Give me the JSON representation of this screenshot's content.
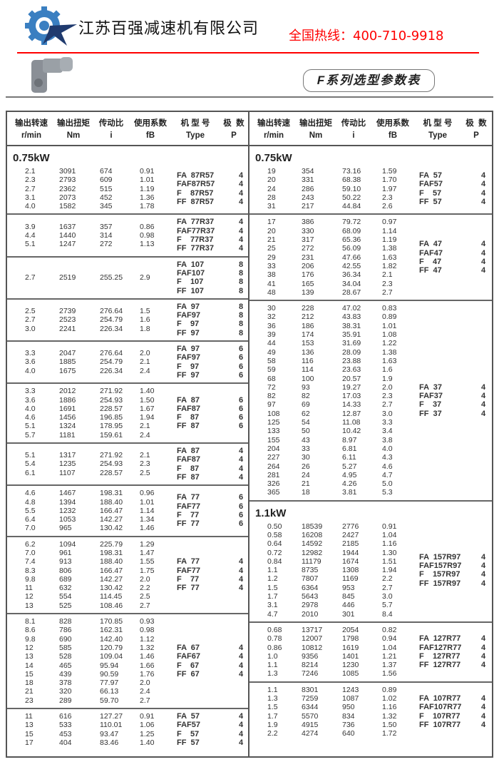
{
  "header": {
    "company": "江苏百强减速机有限公司",
    "hotline": "全国热线：400-710-9918",
    "series_title": "F系列选型参数表",
    "colors": {
      "hotline": "#ff0000",
      "logo_blue": "#3a7fc1",
      "logo_navy": "#1f3a6e"
    }
  },
  "columns": [
    {
      "cn": "输出转速",
      "en": "r/min"
    },
    {
      "cn": "输出扭矩",
      "en": "Nm"
    },
    {
      "cn": "传动比",
      "en": "i"
    },
    {
      "cn": "使用系数",
      "en": "fB"
    },
    {
      "cn": "机 型 号",
      "en": "Type"
    },
    {
      "cn": "极  数",
      "en": "P"
    }
  ],
  "left": [
    {
      "power": "0.75kW",
      "blocks": [
        {
          "rows": [
            [
              "2.1",
              "3091",
              "674",
              "0.91"
            ],
            [
              "2.3",
              "2793",
              "609",
              "1.01"
            ],
            [
              "2.7",
              "2362",
              "515",
              "1.19"
            ],
            [
              "3.1",
              "2073",
              "452",
              "1.36"
            ],
            [
              "4.0",
              "1582",
              "345",
              "1.78"
            ]
          ],
          "types": [
            "FA  87R57",
            "FAF87R57",
            "F    87R57",
            "FF  87R57"
          ],
          "poles": [
            "4",
            "4",
            "4",
            "4"
          ]
        },
        {
          "rows": [
            [
              "3.9",
              "1637",
              "357",
              "0.86"
            ],
            [
              "4.4",
              "1440",
              "314",
              "0.98"
            ],
            [
              "5.1",
              "1247",
              "272",
              "1.13"
            ]
          ],
          "types": [
            "FA  77R37",
            "FAF77R37",
            "F    77R37",
            "FF  77R37"
          ],
          "poles": [
            "4",
            "4",
            "4",
            "4"
          ]
        },
        {
          "rows": [
            [
              "2.7",
              "2519",
              "255.25",
              "2.9"
            ]
          ],
          "types": [
            "FA  107",
            "FAF107",
            "F    107",
            "FF  107"
          ],
          "poles": [
            "8",
            "8",
            "8",
            "8"
          ]
        },
        {
          "rows": [
            [
              "2.5",
              "2739",
              "276.64",
              "1.5"
            ],
            [
              "2.7",
              "2523",
              "254.79",
              "1.6"
            ],
            [
              "3.0",
              "2241",
              "226.34",
              "1.8"
            ]
          ],
          "types": [
            "FA  97",
            "FAF97",
            "F    97",
            "FF  97"
          ],
          "poles": [
            "8",
            "8",
            "8",
            "8"
          ]
        },
        {
          "rows": [
            [
              "3.3",
              "2047",
              "276.64",
              "2.0"
            ],
            [
              "3.6",
              "1885",
              "254.79",
              "2.1"
            ],
            [
              "4.0",
              "1675",
              "226.34",
              "2.4"
            ]
          ],
          "types": [
            "FA  97",
            "FAF97",
            "F    97",
            "FF  97"
          ],
          "poles": [
            "6",
            "6",
            "6",
            "6"
          ]
        },
        {
          "rows": [
            [
              "3.3",
              "2012",
              "271.92",
              "1.40"
            ],
            [
              "3.6",
              "1886",
              "254.93",
              "1.50"
            ],
            [
              "4.0",
              "1691",
              "228.57",
              "1.67"
            ],
            [
              "4.6",
              "1456",
              "196.85",
              "1.94"
            ],
            [
              "5.1",
              "1324",
              "178.95",
              "2.1"
            ],
            [
              "5.7",
              "1181",
              "159.61",
              "2.4"
            ]
          ],
          "types": [
            "FA  87",
            "FAF87",
            "F    87",
            "FF  87"
          ],
          "poles": [
            "6",
            "6",
            "6",
            "6"
          ]
        },
        {
          "rows": [
            [
              "5.1",
              "1317",
              "271.92",
              "2.1"
            ],
            [
              "5.4",
              "1235",
              "254.93",
              "2.3"
            ],
            [
              "6.1",
              "1107",
              "228.57",
              "2.5"
            ]
          ],
          "types": [
            "FA  87",
            "FAF87",
            "F    87",
            "FF  87"
          ],
          "poles": [
            "4",
            "4",
            "4",
            "4"
          ]
        },
        {
          "rows": [
            [
              "4.6",
              "1467",
              "198.31",
              "0.96"
            ],
            [
              "4.8",
              "1394",
              "188.40",
              "1.01"
            ],
            [
              "5.5",
              "1232",
              "166.47",
              "1.14"
            ],
            [
              "6.4",
              "1053",
              "142.27",
              "1.34"
            ],
            [
              "7.0",
              "965",
              "130.42",
              "1.46"
            ]
          ],
          "types": [
            "FA  77",
            "FAF77",
            "F    77",
            "FF  77"
          ],
          "poles": [
            "6",
            "6",
            "6",
            "6"
          ]
        },
        {
          "rows": [
            [
              "6.2",
              "1094",
              "225.79",
              "1.29"
            ],
            [
              "7.0",
              "961",
              "198.31",
              "1.47"
            ],
            [
              "7.4",
              "913",
              "188.40",
              "1.55"
            ],
            [
              "8.3",
              "806",
              "166.47",
              "1.75"
            ],
            [
              "9.8",
              "689",
              "142.27",
              "2.0"
            ],
            [
              "11",
              "632",
              "130.42",
              "2.2"
            ],
            [
              "12",
              "554",
              "114.45",
              "2.5"
            ],
            [
              "13",
              "525",
              "108.46",
              "2.7"
            ]
          ],
          "types": [
            "FA  77",
            "FAF77",
            "F    77",
            "FF  77"
          ],
          "poles": [
            "4",
            "4",
            "4",
            "4"
          ]
        },
        {
          "rows": [
            [
              "8.1",
              "828",
              "170.85",
              "0.93"
            ],
            [
              "8.6",
              "786",
              "162.31",
              "0.98"
            ],
            [
              "9.8",
              "690",
              "142.40",
              "1.12"
            ],
            [
              "12",
              "585",
              "120.79",
              "1.32"
            ],
            [
              "13",
              "528",
              "109.04",
              "1.46"
            ],
            [
              "14",
              "465",
              "95.94",
              "1.66"
            ],
            [
              "15",
              "439",
              "90.59",
              "1.76"
            ],
            [
              "18",
              "378",
              "77.97",
              "2.0"
            ],
            [
              "21",
              "320",
              "66.13",
              "2.4"
            ],
            [
              "23",
              "289",
              "59.70",
              "2.7"
            ]
          ],
          "types": [
            "FA  67",
            "FAF67",
            "F    67",
            "FF  67"
          ],
          "poles": [
            "4",
            "4",
            "4",
            "4"
          ]
        },
        {
          "rows": [
            [
              "11",
              "616",
              "127.27",
              "0.91"
            ],
            [
              "13",
              "533",
              "110.01",
              "1.06"
            ],
            [
              "15",
              "453",
              "93.47",
              "1.25"
            ],
            [
              "17",
              "404",
              "83.46",
              "1.40"
            ]
          ],
          "types": [
            "FA  57",
            "FAF57",
            "F    57",
            "FF  57"
          ],
          "poles": [
            "4",
            "4",
            "4",
            "4"
          ]
        }
      ]
    }
  ],
  "right": [
    {
      "power": "0.75kW",
      "blocks": [
        {
          "rows": [
            [
              "19",
              "354",
              "73.16",
              "1.59"
            ],
            [
              "20",
              "331",
              "68.38",
              "1.70"
            ],
            [
              "24",
              "286",
              "59.10",
              "1.97"
            ],
            [
              "28",
              "243",
              "50.22",
              "2.3"
            ],
            [
              "31",
              "217",
              "44.84",
              "2.6"
            ]
          ],
          "types": [
            "FA  57",
            "FAF57",
            "F    57",
            "FF  57"
          ],
          "poles": [
            "4",
            "4",
            "4",
            "4"
          ]
        },
        {
          "rows": [
            [
              "17",
              "386",
              "79.72",
              "0.97"
            ],
            [
              "20",
              "330",
              "68.09",
              "1.14"
            ],
            [
              "21",
              "317",
              "65.36",
              "1.19"
            ],
            [
              "25",
              "272",
              "56.09",
              "1.38"
            ],
            [
              "29",
              "231",
              "47.66",
              "1.63"
            ],
            [
              "33",
              "206",
              "42.55",
              "1.82"
            ],
            [
              "38",
              "176",
              "36.34",
              "2.1"
            ],
            [
              "41",
              "165",
              "34.04",
              "2.3"
            ],
            [
              "48",
              "139",
              "28.67",
              "2.7"
            ]
          ],
          "types": [
            "FA  47",
            "FAF47",
            "F    47",
            "FF  47"
          ],
          "poles": [
            "4",
            "4",
            "4",
            "4"
          ]
        },
        {
          "rows": [
            [
              "30",
              "228",
              "47.02",
              "0.83"
            ],
            [
              "32",
              "212",
              "43.83",
              "0.89"
            ],
            [
              "36",
              "186",
              "38.31",
              "1.01"
            ],
            [
              "39",
              "174",
              "35.91",
              "1.08"
            ],
            [
              "44",
              "153",
              "31.69",
              "1.22"
            ],
            [
              "49",
              "136",
              "28.09",
              "1.38"
            ],
            [
              "58",
              "116",
              "23.88",
              "1.63"
            ],
            [
              "59",
              "114",
              "23.63",
              "1.6"
            ],
            [
              "68",
              "100",
              "20.57",
              "1.9"
            ],
            [
              "72",
              "93",
              "19.27",
              "2.0"
            ],
            [
              "82",
              "82",
              "17.03",
              "2.3"
            ],
            [
              "97",
              "69",
              "14.33",
              "2.7"
            ],
            [
              "108",
              "62",
              "12.87",
              "3.0"
            ],
            [
              "125",
              "54",
              "11.08",
              "3.3"
            ],
            [
              "133",
              "50",
              "10.42",
              "3.4"
            ],
            [
              "155",
              "43",
              "8.97",
              "3.8"
            ],
            [
              "204",
              "33",
              "6.81",
              "4.0"
            ],
            [
              "227",
              "30",
              "6.11",
              "4.3"
            ],
            [
              "264",
              "26",
              "5.27",
              "4.6"
            ],
            [
              "281",
              "24",
              "4.95",
              "4.7"
            ],
            [
              "326",
              "21",
              "4.26",
              "5.0"
            ],
            [
              "365",
              "18",
              "3.81",
              "5.3"
            ]
          ],
          "types": [
            "FA  37",
            "FAF37",
            "F    37",
            "FF  37"
          ],
          "poles": [
            "4",
            "4",
            "4",
            "4"
          ]
        }
      ]
    },
    {
      "power": "1.1kW",
      "blocks": [
        {
          "rows": [
            [
              "0.50",
              "18539",
              "2776",
              "0.91"
            ],
            [
              "0.58",
              "16208",
              "2427",
              "1.04"
            ],
            [
              "0.64",
              "14592",
              "2185",
              "1.16"
            ],
            [
              "0.72",
              "12982",
              "1944",
              "1.30"
            ],
            [
              "0.84",
              "11179",
              "1674",
              "1.51"
            ],
            [
              "1.1",
              "8735",
              "1308",
              "1.94"
            ],
            [
              "1.2",
              "7807",
              "1169",
              "2.2"
            ],
            [
              "1.5",
              "6364",
              "953",
              "2.7"
            ],
            [
              "1.7",
              "5643",
              "845",
              "3.0"
            ],
            [
              "3.1",
              "2978",
              "446",
              "5.7"
            ],
            [
              "4.7",
              "2010",
              "301",
              "8.4"
            ]
          ],
          "types": [
            "FA  157R97",
            "FAF157R97",
            "F    157R97",
            "FF  157R97"
          ],
          "poles": [
            "4",
            "4",
            "4",
            "4"
          ]
        },
        {
          "rows": [
            [
              "0.68",
              "13717",
              "2054",
              "0.82"
            ],
            [
              "0.78",
              "12007",
              "1798",
              "0.94"
            ],
            [
              "0.86",
              "10812",
              "1619",
              "1.04"
            ],
            [
              "1.0",
              "9356",
              "1401",
              "1.21"
            ],
            [
              "1.1",
              "8214",
              "1230",
              "1.37"
            ],
            [
              "1.3",
              "7246",
              "1085",
              "1.56"
            ]
          ],
          "types": [
            "FA  127R77",
            "FAF127R77",
            "F    127R77",
            "FF  127R77"
          ],
          "poles": [
            "4",
            "4",
            "4",
            "4"
          ]
        },
        {
          "rows": [
            [
              "1.1",
              "8301",
              "1243",
              "0.89"
            ],
            [
              "1.3",
              "7259",
              "1087",
              "1.02"
            ],
            [
              "1.5",
              "6344",
              "950",
              "1.16"
            ],
            [
              "1.7",
              "5570",
              "834",
              "1.32"
            ],
            [
              "1.9",
              "4915",
              "736",
              "1.50"
            ],
            [
              "2.2",
              "4274",
              "640",
              "1.72"
            ]
          ],
          "types": [
            "FA  107R77",
            "FAF107R77",
            "F    107R77",
            "FF  107R77"
          ],
          "poles": [
            "4",
            "4",
            "4",
            "4"
          ]
        }
      ]
    }
  ]
}
